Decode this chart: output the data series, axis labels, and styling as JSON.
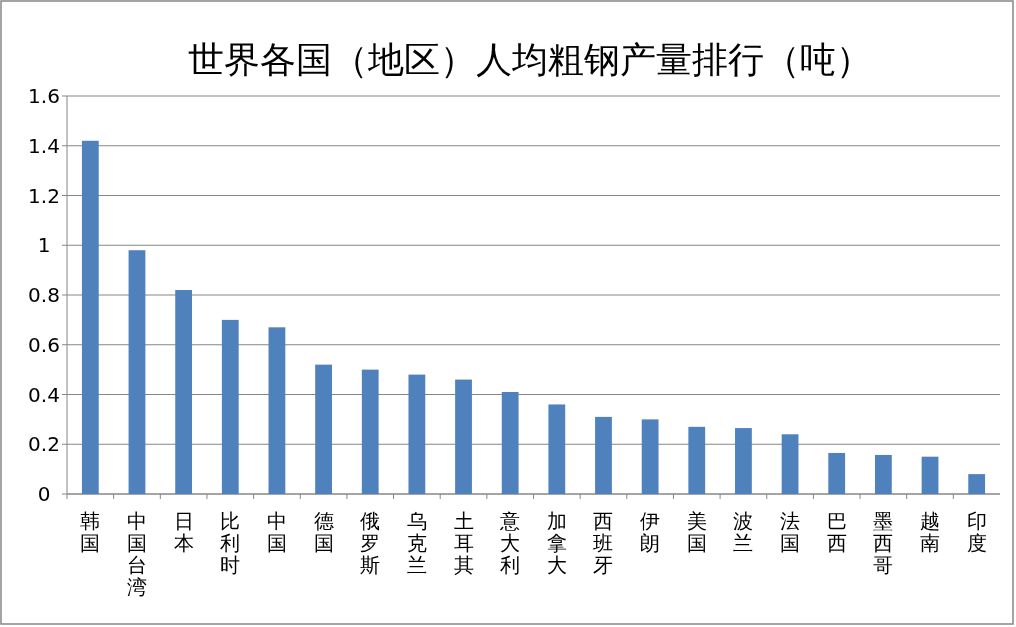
{
  "chart_data": {
    "type": "bar",
    "title": "世界各国（地区）人均粗钢产量排行（吨）",
    "categories": [
      "韩国",
      "中国台湾",
      "日本",
      "比利时",
      "中国",
      "德国",
      "俄罗斯",
      "乌克兰",
      "土耳其",
      "意大利",
      "加拿大",
      "西班牙",
      "伊朗",
      "美国",
      "波兰",
      "法国",
      "巴西",
      "墨西哥",
      "越南",
      "印度"
    ],
    "values": [
      1.42,
      0.98,
      0.82,
      0.7,
      0.67,
      0.52,
      0.5,
      0.48,
      0.46,
      0.41,
      0.36,
      0.31,
      0.3,
      0.27,
      0.265,
      0.24,
      0.165,
      0.157,
      0.15,
      0.08
    ],
    "color": "#4f81bd",
    "ylim": [
      0,
      1.6
    ],
    "yticks": [
      0,
      0.2,
      0.4,
      0.6,
      0.8,
      1,
      1.2,
      1.4,
      1.6
    ],
    "grid": "y"
  }
}
